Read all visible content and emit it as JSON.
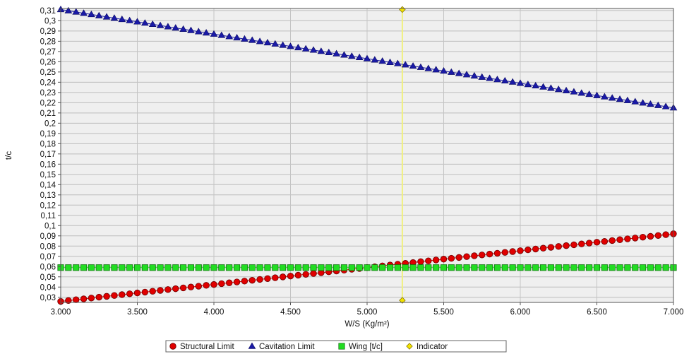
{
  "chart_data": {
    "type": "line",
    "xlabel": "W/S (Kg/m²)",
    "ylabel": "t/c",
    "xlim": [
      3000,
      7000
    ],
    "ylim": [
      0.025,
      0.312
    ],
    "x_ticks": [
      3000,
      3500,
      4000,
      4500,
      5000,
      5500,
      6000,
      6500,
      7000
    ],
    "x_tick_labels": [
      "3.000",
      "3.500",
      "4.000",
      "4.500",
      "5.000",
      "5.500",
      "6.000",
      "6.500",
      "7.000"
    ],
    "y_ticks": [
      0.03,
      0.04,
      0.05,
      0.06,
      0.07,
      0.08,
      0.09,
      0.1,
      0.11,
      0.12,
      0.13,
      0.14,
      0.15,
      0.16,
      0.17,
      0.18,
      0.19,
      0.2,
      0.21,
      0.22,
      0.23,
      0.24,
      0.25,
      0.26,
      0.27,
      0.28,
      0.29,
      0.3,
      0.31
    ],
    "y_tick_labels": [
      "0,03",
      "0,04",
      "0,05",
      "0,06",
      "0,07",
      "0,08",
      "0,09",
      "0,1",
      "0,11",
      "0,12",
      "0,13",
      "0,14",
      "0,15",
      "0,16",
      "0,17",
      "0,18",
      "0,19",
      "0,2",
      "0,21",
      "0,22",
      "0,23",
      "0,24",
      "0,25",
      "0,26",
      "0,27",
      "0,28",
      "0,29",
      "0,3",
      "0,31"
    ],
    "grid": true,
    "legend_position": "bottom-center",
    "series": [
      {
        "name": "Structural Limit",
        "marker": "circle",
        "color": "#e00000",
        "x_range": [
          3000,
          7000
        ],
        "x_step": 50,
        "y_start": 0.026,
        "y_end": 0.092
      },
      {
        "name": "Cavitation Limit",
        "marker": "triangle",
        "color": "#1a1aa6",
        "x_range": [
          3000,
          7000
        ],
        "x_step": 50,
        "y_start": 0.311,
        "y_end": 0.215
      },
      {
        "name": "Wing [t/c]",
        "marker": "square",
        "color": "#22dd22",
        "x_range": [
          3000,
          7000
        ],
        "x_step": 50,
        "y_start": 0.059,
        "y_end": 0.059
      },
      {
        "name": "Indicator",
        "marker": "diamond",
        "color": "#f2e200",
        "points": [
          [
            5230,
            0.311
          ],
          [
            5230,
            0.027
          ]
        ]
      }
    ],
    "indicator_line_color": "#f0f080"
  }
}
